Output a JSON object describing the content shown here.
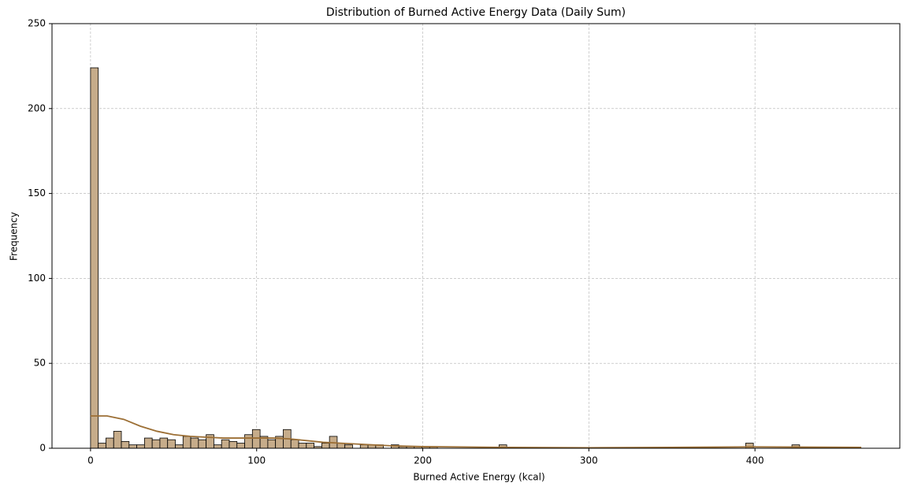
{
  "chart_data": {
    "type": "histogram",
    "title": "Distribution of Burned Active Energy Data (Daily Sum)",
    "xlabel": "Burned Active Energy (kcal)",
    "ylabel": "Frequency",
    "bins": [
      0,
      4.64,
      9.28,
      13.92,
      18.56,
      23.2,
      27.84,
      32.48,
      37.12,
      41.76,
      46.4,
      51.04,
      55.68,
      60.32,
      64.96,
      69.6,
      74.24,
      78.88,
      83.52,
      88.16,
      92.8,
      97.44,
      102.08,
      106.72,
      111.36,
      116,
      120.64,
      125.28,
      129.92,
      134.56,
      139.2,
      143.84,
      148.48,
      153.12,
      157.76,
      162.4,
      167.04,
      171.68,
      176.32,
      180.96,
      185.6,
      190.24,
      194.88,
      199.52,
      204.16,
      208.8,
      213.44,
      218.08,
      222.72,
      227.36,
      232,
      236.64,
      241.28,
      245.92,
      250.56,
      255.2,
      259.84,
      264.48,
      269.12,
      273.76,
      278.4,
      283.04,
      287.68,
      292.32,
      296.96,
      301.6,
      306.24,
      310.88,
      315.52,
      320.16,
      324.8,
      329.44,
      334.08,
      338.72,
      343.36,
      348,
      352.64,
      357.28,
      361.92,
      366.56,
      371.2,
      375.84,
      380.48,
      385.12,
      389.76,
      394.4,
      399.04,
      403.68,
      408.32,
      412.96,
      417.6,
      422.24,
      426.88,
      431.52,
      436.16,
      440.8,
      445.44,
      450.08,
      454.72,
      459.36,
      464
    ],
    "counts": [
      224,
      3,
      6,
      10,
      4,
      2,
      2,
      6,
      5,
      6,
      5,
      2,
      7,
      6,
      5,
      8,
      2,
      5,
      4,
      3,
      8,
      11,
      7,
      5,
      7,
      11,
      5,
      3,
      3,
      1,
      3,
      7,
      3,
      2,
      0,
      2,
      2,
      2,
      0,
      2,
      1,
      1,
      1,
      1,
      1,
      0,
      0,
      0,
      0,
      0,
      0,
      0,
      0,
      2,
      0,
      0,
      0,
      0,
      0,
      0,
      0,
      0,
      0,
      0,
      0,
      0,
      0,
      0,
      0,
      0,
      0,
      0,
      0,
      0,
      0,
      0,
      0,
      0,
      0,
      0,
      0,
      0,
      0,
      0,
      0,
      3,
      0,
      0,
      0,
      0,
      0,
      2,
      0,
      0,
      0,
      0,
      0,
      0,
      0,
      0
    ],
    "color": "#c6ac8a",
    "edgecolor": "#000000",
    "kde": {
      "color": "#9c6f35",
      "x": [
        0,
        10,
        20,
        30,
        40,
        50,
        60,
        70,
        80,
        90,
        100,
        110,
        120,
        130,
        140,
        150,
        160,
        180,
        200,
        250,
        300,
        350,
        400,
        464
      ],
      "values": [
        19,
        19,
        17,
        13,
        10,
        8,
        7,
        6.5,
        6,
        6,
        6,
        6,
        5.5,
        4.5,
        3.5,
        3,
        2.5,
        1.5,
        1,
        0.5,
        0.3,
        0.5,
        0.8,
        0.5
      ]
    },
    "xlim": [
      -23.2,
      487.2
    ],
    "ylim": [
      0,
      250
    ],
    "xticks": [
      0,
      100,
      200,
      300,
      400
    ],
    "yticks": [
      0,
      50,
      100,
      150,
      200,
      250
    ],
    "grid": true
  }
}
